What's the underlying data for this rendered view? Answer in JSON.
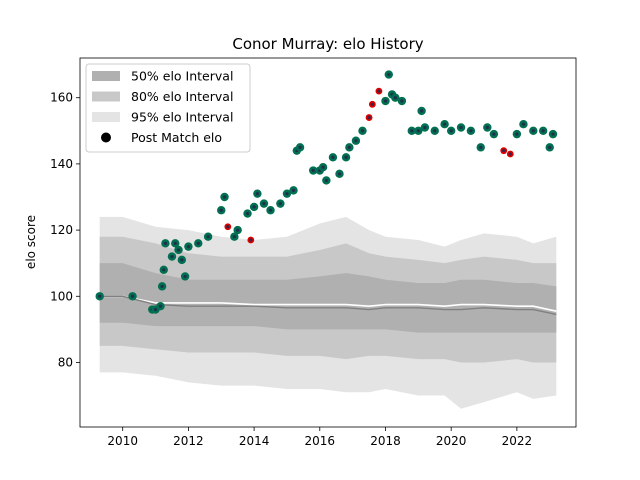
{
  "chart_data": {
    "type": "scatter",
    "title": "Conor Murray: elo History",
    "xlabel": "",
    "ylabel": "elo score",
    "xlim": [
      2008.7,
      2023.8
    ],
    "ylim": [
      60.5,
      172
    ],
    "xticks": [
      2010,
      2012,
      2014,
      2016,
      2018,
      2020,
      2022
    ],
    "yticks": [
      80,
      100,
      120,
      140,
      160
    ],
    "grid": false,
    "legend_position": "upper-left",
    "legend": [
      {
        "label": "50% elo Interval",
        "kind": "band",
        "color": "#b0b0b0"
      },
      {
        "label": "80% elo Interval",
        "kind": "band",
        "color": "#c8c8c8"
      },
      {
        "label": "95% elo Interval",
        "kind": "band",
        "color": "#e4e4e4"
      },
      {
        "label": "Post Match elo",
        "kind": "marker",
        "color": "#000000"
      }
    ],
    "colors": {
      "band50": "#b0b0b0",
      "band80": "#c8c8c8",
      "band95": "#e4e4e4",
      "median_line": "#808080",
      "mean_line": "#ffffff",
      "win": "#007050",
      "loss": "#dd0000",
      "outline": "#26264f"
    },
    "bands": {
      "x": [
        2009.3,
        2010.0,
        2011.0,
        2012.0,
        2013.0,
        2014.0,
        2015.0,
        2016.0,
        2016.8,
        2017.5,
        2018.0,
        2019.0,
        2019.8,
        2020.3,
        2021.0,
        2022.0,
        2022.5,
        2023.2
      ],
      "p95_upper": [
        124,
        124,
        121,
        120,
        118,
        117,
        118,
        122,
        124,
        120,
        118,
        117,
        115,
        117,
        119,
        118,
        116,
        118
      ],
      "p95_lower": [
        77,
        77,
        76,
        74,
        73,
        73,
        72,
        72,
        71,
        71,
        72,
        70,
        70,
        66,
        68,
        71,
        69,
        70
      ],
      "p80_upper": [
        118,
        118,
        116,
        113,
        112,
        112,
        112,
        114,
        116,
        113,
        112,
        111,
        110,
        111,
        112,
        111,
        110,
        110
      ],
      "p80_lower": [
        85,
        85,
        84,
        83,
        83,
        83,
        82,
        82,
        81,
        82,
        82,
        81,
        81,
        80,
        80,
        81,
        80,
        80
      ],
      "p50_upper": [
        110,
        110,
        107,
        105,
        105,
        105,
        105,
        106,
        107,
        106,
        105,
        104,
        104,
        105,
        105,
        104,
        104,
        103
      ],
      "p50_lower": [
        92,
        92,
        91,
        91,
        91,
        91,
        90,
        90,
        90,
        90,
        90,
        89,
        89,
        89,
        89,
        89,
        89,
        89
      ],
      "median": [
        100,
        100,
        97.5,
        97,
        97,
        97,
        96.5,
        96.5,
        96.5,
        96,
        96.5,
        96.5,
        96,
        96,
        96.5,
        96,
        96,
        94.5
      ],
      "mean": [
        100,
        100,
        98,
        98,
        98,
        97.5,
        97.5,
        97.5,
        97.5,
        97,
        97.5,
        97.5,
        97,
        97.5,
        97.5,
        97,
        97,
        95.5
      ]
    },
    "series": [
      {
        "name": "Post Match elo",
        "x": [
          2009.3,
          2010.3,
          2010.9,
          2011.0,
          2011.15,
          2011.2,
          2011.25,
          2011.3,
          2011.5,
          2011.6,
          2011.7,
          2011.8,
          2011.9,
          2012.0,
          2012.3,
          2012.6,
          2013.0,
          2013.1,
          2013.2,
          2013.4,
          2013.5,
          2013.8,
          2013.9,
          2014.0,
          2014.1,
          2014.3,
          2014.5,
          2014.8,
          2015.0,
          2015.2,
          2015.3,
          2015.4,
          2015.8,
          2016.0,
          2016.1,
          2016.2,
          2016.4,
          2016.6,
          2016.8,
          2016.9,
          2017.1,
          2017.3,
          2017.5,
          2017.6,
          2017.8,
          2018.0,
          2018.1,
          2018.2,
          2018.3,
          2018.5,
          2018.8,
          2019.0,
          2019.1,
          2019.2,
          2019.5,
          2019.8,
          2020.0,
          2020.3,
          2020.6,
          2020.9,
          2021.1,
          2021.3,
          2021.6,
          2021.8,
          2022.0,
          2022.2,
          2022.5,
          2022.8,
          2023.0,
          2023.1
        ],
        "y": [
          100,
          100,
          96,
          96,
          97,
          103,
          108,
          116,
          112,
          116,
          114,
          111,
          106,
          115,
          116,
          118,
          126,
          130,
          121,
          118,
          120,
          125,
          117,
          127,
          131,
          128,
          126,
          128,
          131,
          132,
          144,
          145,
          138,
          138,
          139,
          135,
          142,
          137,
          142,
          145,
          147,
          150,
          154,
          158,
          162,
          159,
          167,
          161,
          160,
          159,
          150,
          150,
          156,
          151,
          150,
          152,
          150,
          151,
          150,
          145,
          151,
          149,
          144,
          143,
          149,
          152,
          150,
          150,
          145,
          149
        ],
        "result": [
          "win",
          "win",
          "win",
          "win",
          "win",
          "win",
          "win",
          "win",
          "win",
          "win",
          "win",
          "win",
          "win",
          "win",
          "win",
          "win",
          "win",
          "win",
          "loss",
          "win",
          "win",
          "win",
          "loss",
          "win",
          "win",
          "win",
          "win",
          "win",
          "win",
          "win",
          "win",
          "win",
          "win",
          "win",
          "win",
          "win",
          "win",
          "win",
          "win",
          "win",
          "win",
          "win",
          "loss",
          "loss",
          "loss",
          "win",
          "win",
          "win",
          "win",
          "win",
          "win",
          "win",
          "win",
          "win",
          "win",
          "win",
          "win",
          "win",
          "win",
          "win",
          "win",
          "win",
          "loss",
          "loss",
          "win",
          "win",
          "win",
          "win",
          "win",
          "win"
        ]
      }
    ]
  }
}
